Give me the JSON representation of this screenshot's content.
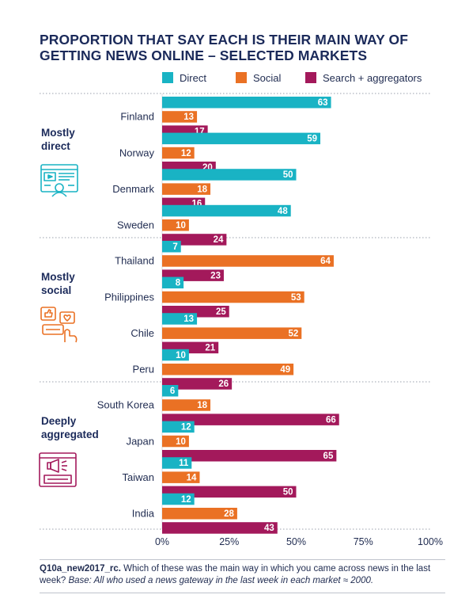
{
  "chart_data": {
    "type": "bar",
    "orientation": "horizontal",
    "title": "PROPORTION THAT SAY EACH IS THEIR MAIN WAY OF GETTING NEWS ONLINE – SELECTED MARKETS",
    "legend_position": "top-right",
    "xlim": [
      0,
      100
    ],
    "x_ticks": [
      "0%",
      "25%",
      "50%",
      "75%",
      "100%"
    ],
    "x_tick_values": [
      0,
      25,
      50,
      75,
      100
    ],
    "series": [
      {
        "name": "Direct",
        "color": "#19b3c4"
      },
      {
        "name": "Social",
        "color": "#ea7124"
      },
      {
        "name": "Search + aggregators",
        "color": "#a3195b"
      }
    ],
    "groups": [
      {
        "label_line1": "Mostly",
        "label_line2": "direct",
        "icon": "news-website-icon",
        "markets": [
          {
            "name": "Finland",
            "values": [
              63,
              13,
              17
            ]
          },
          {
            "name": "Norway",
            "values": [
              59,
              12,
              20
            ]
          },
          {
            "name": "Denmark",
            "values": [
              50,
              18,
              16
            ]
          },
          {
            "name": "Sweden",
            "values": [
              48,
              10,
              24
            ]
          }
        ]
      },
      {
        "label_line1": "Mostly",
        "label_line2": "social",
        "icon": "social-media-icon",
        "markets": [
          {
            "name": "Thailand",
            "values": [
              7,
              64,
              23
            ]
          },
          {
            "name": "Philippines",
            "values": [
              8,
              53,
              25
            ]
          },
          {
            "name": "Chile",
            "values": [
              13,
              52,
              21
            ]
          },
          {
            "name": "Peru",
            "values": [
              10,
              49,
              26
            ]
          }
        ]
      },
      {
        "label_line1": "Deeply",
        "label_line2": "aggregated",
        "icon": "aggregator-icon",
        "markets": [
          {
            "name": "South Korea",
            "values": [
              6,
              18,
              66
            ]
          },
          {
            "name": "Japan",
            "values": [
              12,
              10,
              65
            ]
          },
          {
            "name": "Taiwan",
            "values": [
              11,
              14,
              50
            ]
          },
          {
            "name": "India",
            "values": [
              12,
              28,
              43
            ]
          }
        ]
      }
    ]
  },
  "footnote": {
    "code": "Q10a_new2017_rc.",
    "question": "Which of these was the main way in which you came across news in the last week?",
    "base": "Base: All who used a news gateway in the last week in each market ≈ 2000."
  }
}
